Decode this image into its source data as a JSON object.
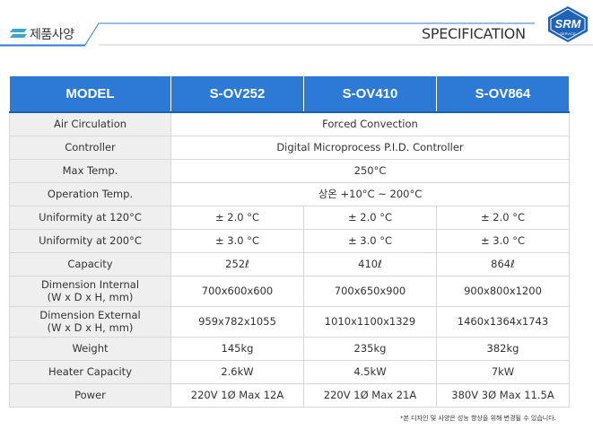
{
  "header": {
    "title_ko": "제품사양",
    "spec_label": "SPECIFICATION",
    "logo_text": "SRM"
  },
  "table": {
    "headers": [
      "MODEL",
      "S-OV252",
      "S-OV410",
      "S-OV864"
    ],
    "rows": [
      {
        "label": "Air Circulation",
        "span": "Forced Convection"
      },
      {
        "label": "Controller",
        "span": "Digital Microprocess P.I.D. Controller"
      },
      {
        "label": "Max Temp.",
        "span": "250°C"
      },
      {
        "label": "Operation Temp.",
        "span": "상온 +10°C ~ 200°C"
      },
      {
        "label": "Uniformity at 120°C",
        "values": [
          "± 2.0 °C",
          "± 2.0 °C",
          "± 2.0 °C"
        ]
      },
      {
        "label": "Uniformity at 200°C",
        "values": [
          "± 3.0 °C",
          "± 3.0 °C",
          "± 3.0 °C"
        ]
      },
      {
        "label": "Capacity",
        "values": [
          "252ℓ",
          "410ℓ",
          "864ℓ"
        ]
      },
      {
        "label": "Dimension Internal",
        "label2": "(W x D x H, mm)",
        "values": [
          "700x600x600",
          "700x650x900",
          "900x800x1200"
        ]
      },
      {
        "label": "Dimension External",
        "label2": "(W x D x H, mm)",
        "values": [
          "959x782x1055",
          "1010x1100x1329",
          "1460x1364x1743"
        ]
      },
      {
        "label": "Weight",
        "values": [
          "145kg",
          "235kg",
          "382kg"
        ]
      },
      {
        "label": "Heater Capacity",
        "values": [
          "2.6kW",
          "4.5kW",
          "7kW"
        ]
      },
      {
        "label": "Power",
        "values": [
          "220V 1Ø Max 12A",
          "220V 1Ø Max 21A",
          "380V 3Ø Max 11.5A"
        ]
      }
    ]
  },
  "note": "*본 디자인 및 사양은 성능 향상을 위해 변경될 수 있습니다.",
  "colors": {
    "header_blue": "#2c7ad6",
    "label_bg": "#efefef",
    "border": "#d8d8d8"
  }
}
